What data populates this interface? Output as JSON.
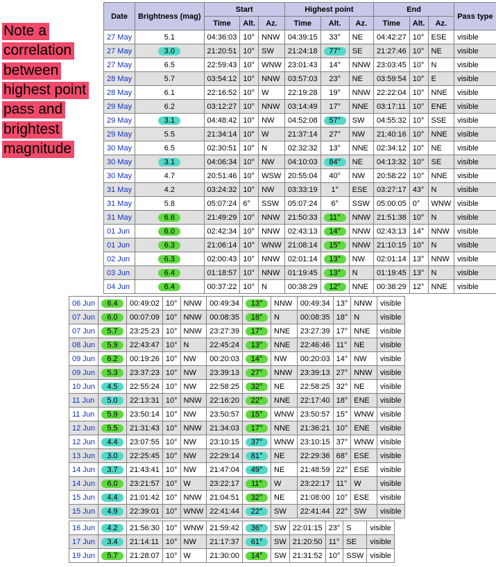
{
  "annotation_text": "Note a correlation between highest point pass and brightest magnitude",
  "headers": {
    "date": "Date",
    "brightness": "Brightness (mag)",
    "start": "Start",
    "highest": "Highest point",
    "end": "End",
    "time": "Time",
    "alt": "Alt.",
    "az": "Az.",
    "passtype": "Pass type"
  },
  "colors": {
    "annotation_bg": "#f04a6b",
    "header_bg": "#c8c8e8",
    "row_odd": "#ffffff",
    "row_even": "#e0e0e0",
    "link": "#1030c0",
    "pill_cyan": "#54d8c8",
    "pill_green": "#60d840"
  },
  "tables": [
    {
      "show_header": true,
      "rows": [
        {
          "date": "27 May",
          "mag": "5.1",
          "mag_pill": "",
          "s_t": "04:36:03",
          "s_alt": "10°",
          "s_az": "NNW",
          "h_t": "04:39:15",
          "h_alt": "33°",
          "h_alt_pill": "",
          "h_az": "NE",
          "e_t": "04:42:27",
          "e_alt": "10°",
          "e_az": "ESE",
          "pt": "visible"
        },
        {
          "date": "27 May",
          "mag": "3.0",
          "mag_pill": "cyan",
          "s_t": "21:20:51",
          "s_alt": "10°",
          "s_az": "SW",
          "h_t": "21:24:18",
          "h_alt": "77°",
          "h_alt_pill": "cyan",
          "h_az": "SE",
          "e_t": "21:27:46",
          "e_alt": "10°",
          "e_az": "NE",
          "pt": "visible"
        },
        {
          "date": "27 May",
          "mag": "6.5",
          "mag_pill": "",
          "s_t": "22:59:43",
          "s_alt": "10°",
          "s_az": "WNW",
          "h_t": "23:01:43",
          "h_alt": "14°",
          "h_alt_pill": "",
          "h_az": "NNW",
          "e_t": "23:03:45",
          "e_alt": "10°",
          "e_az": "N",
          "pt": "visible"
        },
        {
          "date": "28 May",
          "mag": "5.7",
          "mag_pill": "",
          "s_t": "03:54:12",
          "s_alt": "10°",
          "s_az": "NNW",
          "h_t": "03:57:03",
          "h_alt": "23°",
          "h_alt_pill": "",
          "h_az": "NE",
          "e_t": "03:59:54",
          "e_alt": "10°",
          "e_az": "E",
          "pt": "visible"
        },
        {
          "date": "28 May",
          "mag": "6.1",
          "mag_pill": "",
          "s_t": "22:16:52",
          "s_alt": "10°",
          "s_az": "W",
          "h_t": "22:19:28",
          "h_alt": "19°",
          "h_alt_pill": "",
          "h_az": "NNW",
          "e_t": "22:22:04",
          "e_alt": "10°",
          "e_az": "NNE",
          "pt": "visible"
        },
        {
          "date": "29 May",
          "mag": "6.2",
          "mag_pill": "",
          "s_t": "03:12:27",
          "s_alt": "10°",
          "s_az": "NNW",
          "h_t": "03:14:49",
          "h_alt": "17°",
          "h_alt_pill": "",
          "h_az": "NNE",
          "e_t": "03:17:11",
          "e_alt": "10°",
          "e_az": "ENE",
          "pt": "visible"
        },
        {
          "date": "29 May",
          "mag": "3.1",
          "mag_pill": "cyan",
          "s_t": "04:48:42",
          "s_alt": "10°",
          "s_az": "NW",
          "h_t": "04:52:08",
          "h_alt": "57°",
          "h_alt_pill": "cyan",
          "h_az": "SW",
          "e_t": "04:55:32",
          "e_alt": "10°",
          "e_az": "SSE",
          "pt": "visible"
        },
        {
          "date": "29 May",
          "mag": "5.5",
          "mag_pill": "",
          "s_t": "21:34:14",
          "s_alt": "10°",
          "s_az": "W",
          "h_t": "21:37:14",
          "h_alt": "27°",
          "h_alt_pill": "",
          "h_az": "NW",
          "e_t": "21:40:16",
          "e_alt": "10°",
          "e_az": "NNE",
          "pt": "visible"
        },
        {
          "date": "30 May",
          "mag": "6.5",
          "mag_pill": "",
          "s_t": "02:30:51",
          "s_alt": "10°",
          "s_az": "N",
          "h_t": "02:32:32",
          "h_alt": "13°",
          "h_alt_pill": "",
          "h_az": "NNE",
          "e_t": "02:34:12",
          "e_alt": "10°",
          "e_az": "NE",
          "pt": "visible"
        },
        {
          "date": "30 May",
          "mag": "3.1",
          "mag_pill": "cyan",
          "s_t": "04:06:34",
          "s_alt": "10°",
          "s_az": "NW",
          "h_t": "04:10:03",
          "h_alt": "84°",
          "h_alt_pill": "cyan",
          "h_az": "NE",
          "e_t": "04:13:32",
          "e_alt": "10°",
          "e_az": "SE",
          "pt": "visible"
        },
        {
          "date": "30 May",
          "mag": "4.7",
          "mag_pill": "",
          "s_t": "20:51:46",
          "s_alt": "10°",
          "s_az": "WSW",
          "h_t": "20:55:04",
          "h_alt": "40°",
          "h_alt_pill": "",
          "h_az": "NW",
          "e_t": "20:58:22",
          "e_alt": "10°",
          "e_az": "NNE",
          "pt": "visible"
        },
        {
          "date": "31 May",
          "mag": "4.2",
          "mag_pill": "",
          "s_t": "03:24:32",
          "s_alt": "10°",
          "s_az": "NW",
          "h_t": "03:33:19",
          "h_alt": "1°",
          "h_alt_pill": "",
          "h_az": "ESE",
          "e_t": "03:27:17",
          "e_alt": "43°",
          "e_az": "N",
          "pt": "visible"
        },
        {
          "date": "31 May",
          "mag": "5.8",
          "mag_pill": "",
          "s_t": "05:07:24",
          "s_alt": "6°",
          "s_az": "SSW",
          "h_t": "05:07:24",
          "h_alt": "6°",
          "h_alt_pill": "",
          "h_az": "SSW",
          "e_t": "05:00:05",
          "e_alt": "0°",
          "e_az": "WNW",
          "pt": "visible"
        },
        {
          "date": "31 May",
          "mag": "6.6",
          "mag_pill": "green",
          "s_t": "21:49:29",
          "s_alt": "10°",
          "s_az": "NNW",
          "h_t": "21:50:33",
          "h_alt": "11°",
          "h_alt_pill": "green",
          "h_az": "NNW",
          "e_t": "21:51:38",
          "e_alt": "10°",
          "e_az": "N",
          "pt": "visible"
        },
        {
          "date": "01 Jun",
          "mag": "6.0",
          "mag_pill": "green",
          "s_t": "02:42:34",
          "s_alt": "10°",
          "s_az": "NNW",
          "h_t": "02:43:13",
          "h_alt": "14°",
          "h_alt_pill": "green",
          "h_az": "NNW",
          "e_t": "02:43:13",
          "e_alt": "14°",
          "e_az": "NNW",
          "pt": "visible"
        },
        {
          "date": "01 Jun",
          "mag": "6.3",
          "mag_pill": "green",
          "s_t": "21:06:14",
          "s_alt": "10°",
          "s_az": "WNW",
          "h_t": "21:08:14",
          "h_alt": "15°",
          "h_alt_pill": "green",
          "h_az": "NNW",
          "e_t": "21:10:15",
          "e_alt": "10°",
          "e_az": "N",
          "pt": "visible"
        },
        {
          "date": "02 Jun",
          "mag": "6.3",
          "mag_pill": "green",
          "s_t": "02:00:43",
          "s_alt": "10°",
          "s_az": "NNW",
          "h_t": "02:01:14",
          "h_alt": "13°",
          "h_alt_pill": "green",
          "h_az": "NW",
          "e_t": "02:01:14",
          "e_alt": "13°",
          "e_az": "NNW",
          "pt": "visible"
        },
        {
          "date": "03 Jun",
          "mag": "6.4",
          "mag_pill": "green",
          "s_t": "01:18:57",
          "s_alt": "10°",
          "s_az": "NNW",
          "h_t": "01:19:45",
          "h_alt": "13°",
          "h_alt_pill": "green",
          "h_az": "N",
          "e_t": "01:19:45",
          "e_alt": "13°",
          "e_az": "N",
          "pt": "visible"
        },
        {
          "date": "04 Jun",
          "mag": "6.4",
          "mag_pill": "green",
          "s_t": "00:37:22",
          "s_alt": "10°",
          "s_az": "N",
          "h_t": "00:38:29",
          "h_alt": "12°",
          "h_alt_pill": "green",
          "h_az": "NNE",
          "e_t": "00:38:29",
          "e_alt": "12°",
          "e_az": "NNE",
          "pt": "visible"
        }
      ]
    },
    {
      "show_header": false,
      "rows": [
        {
          "date": "06 Jun",
          "mag": "6.4",
          "mag_pill": "green",
          "s_t": "00:49:02",
          "s_alt": "10°",
          "s_az": "NNW",
          "h_t": "00:49:34",
          "h_alt": "13°",
          "h_alt_pill": "green",
          "h_az": "NNW",
          "e_t": "00:49:34",
          "e_alt": "13°",
          "e_az": "NNW",
          "pt": "visible"
        },
        {
          "date": "07 Jun",
          "mag": "6.0",
          "mag_pill": "green",
          "s_t": "00:07:09",
          "s_alt": "10°",
          "s_az": "NNW",
          "h_t": "00:08:35",
          "h_alt": "18°",
          "h_alt_pill": "green",
          "h_az": "N",
          "e_t": "00:08:35",
          "e_alt": "18°",
          "e_az": "N",
          "pt": "visible"
        },
        {
          "date": "07 Jun",
          "mag": "5.7",
          "mag_pill": "green",
          "s_t": "23:25:23",
          "s_alt": "10°",
          "s_az": "NNW",
          "h_t": "23:27:39",
          "h_alt": "17°",
          "h_alt_pill": "green",
          "h_az": "NNE",
          "e_t": "23:27:39",
          "e_alt": "17°",
          "e_az": "NNE",
          "pt": "visible"
        },
        {
          "date": "08 Jun",
          "mag": "5.9",
          "mag_pill": "green",
          "s_t": "22:43:47",
          "s_alt": "10°",
          "s_az": "N",
          "h_t": "22:45:24",
          "h_alt": "13°",
          "h_alt_pill": "green",
          "h_az": "NNE",
          "e_t": "22:46:46",
          "e_alt": "11°",
          "e_az": "NE",
          "pt": "visible"
        },
        {
          "date": "09 Jun",
          "mag": "6.2",
          "mag_pill": "green",
          "s_t": "00:19:26",
          "s_alt": "10°",
          "s_az": "NW",
          "h_t": "00:20:03",
          "h_alt": "14°",
          "h_alt_pill": "green",
          "h_az": "NW",
          "e_t": "00:20:03",
          "e_alt": "14°",
          "e_az": "NW",
          "pt": "visible"
        },
        {
          "date": "09 Jun",
          "mag": "5.3",
          "mag_pill": "green",
          "s_t": "23:37:23",
          "s_alt": "10°",
          "s_az": "NW",
          "h_t": "23:39:13",
          "h_alt": "27°",
          "h_alt_pill": "green",
          "h_az": "NNW",
          "e_t": "23:39:13",
          "e_alt": "27°",
          "e_az": "NNW",
          "pt": "visible"
        },
        {
          "date": "10 Jun",
          "mag": "4.5",
          "mag_pill": "cyan",
          "s_t": "22:55:24",
          "s_alt": "10°",
          "s_az": "NW",
          "h_t": "22:58:25",
          "h_alt": "32°",
          "h_alt_pill": "green",
          "h_az": "NE",
          "e_t": "22:58:25",
          "e_alt": "32°",
          "e_az": "NE",
          "pt": "visible"
        },
        {
          "date": "11 Jun",
          "mag": "5.0",
          "mag_pill": "cyan",
          "s_t": "22:13:31",
          "s_alt": "10°",
          "s_az": "NNW",
          "h_t": "22:16:20",
          "h_alt": "22°",
          "h_alt_pill": "green",
          "h_az": "NNE",
          "e_t": "22:17:40",
          "e_alt": "18°",
          "e_az": "ENE",
          "pt": "visible"
        },
        {
          "date": "11 Jun",
          "mag": "5.9",
          "mag_pill": "green",
          "s_t": "23:50:14",
          "s_alt": "10°",
          "s_az": "NW",
          "h_t": "23:50:57",
          "h_alt": "15°",
          "h_alt_pill": "green",
          "h_az": "WNW",
          "e_t": "23:50:57",
          "e_alt": "15°",
          "e_az": "WNW",
          "pt": "visible"
        },
        {
          "date": "12 Jun",
          "mag": "5.5",
          "mag_pill": "green",
          "s_t": "21:31:43",
          "s_alt": "10°",
          "s_az": "NNW",
          "h_t": "21:34:03",
          "h_alt": "17°",
          "h_alt_pill": "green",
          "h_az": "NNE",
          "e_t": "21:36:21",
          "e_alt": "10°",
          "e_az": "ENE",
          "pt": "visible"
        },
        {
          "date": "12 Jun",
          "mag": "4.4",
          "mag_pill": "cyan",
          "s_t": "23:07:55",
          "s_alt": "10°",
          "s_az": "NW",
          "h_t": "23:10:15",
          "h_alt": "37°",
          "h_alt_pill": "cyan",
          "h_az": "WNW",
          "e_t": "23:10:15",
          "e_alt": "37°",
          "e_az": "WNW",
          "pt": "visible"
        },
        {
          "date": "13 Jun",
          "mag": "3.0",
          "mag_pill": "cyan",
          "s_t": "22:25:45",
          "s_alt": "10°",
          "s_az": "NW",
          "h_t": "22:29:14",
          "h_alt": "81°",
          "h_alt_pill": "cyan",
          "h_az": "NE",
          "e_t": "22:29:36",
          "e_alt": "68°",
          "e_az": "ESE",
          "pt": "visible"
        },
        {
          "date": "14 Jun",
          "mag": "3.7",
          "mag_pill": "cyan",
          "s_t": "21:43:41",
          "s_alt": "10°",
          "s_az": "NW",
          "h_t": "21:47:04",
          "h_alt": "49°",
          "h_alt_pill": "cyan",
          "h_az": "NE",
          "e_t": "21:48:59",
          "e_alt": "22°",
          "e_az": "ESE",
          "pt": "visible"
        },
        {
          "date": "14 Jun",
          "mag": "6.0",
          "mag_pill": "green",
          "s_t": "23:21:57",
          "s_alt": "10°",
          "s_az": "W",
          "h_t": "23:22:17",
          "h_alt": "11°",
          "h_alt_pill": "green",
          "h_az": "W",
          "e_t": "23:22:17",
          "e_alt": "11°",
          "e_az": "W",
          "pt": "visible"
        },
        {
          "date": "15 Jun",
          "mag": "4.4",
          "mag_pill": "cyan",
          "s_t": "21:01:42",
          "s_alt": "10°",
          "s_az": "NNW",
          "h_t": "21:04:51",
          "h_alt": "32°",
          "h_alt_pill": "green",
          "h_az": "NE",
          "e_t": "21:08:00",
          "e_alt": "10°",
          "e_az": "ESE",
          "pt": "visible"
        },
        {
          "date": "15 Jun",
          "mag": "4.9",
          "mag_pill": "cyan",
          "s_t": "22:39:01",
          "s_alt": "10°",
          "s_az": "WNW",
          "h_t": "22:41:44",
          "h_alt": "22°",
          "h_alt_pill": "cyan",
          "h_az": "SW",
          "e_t": "22:41:44",
          "e_alt": "22°",
          "e_az": "SW",
          "pt": "visible"
        }
      ]
    },
    {
      "show_header": false,
      "rows": [
        {
          "date": "16 Jun",
          "mag": "4.2",
          "mag_pill": "cyan",
          "s_t": "21:56:30",
          "s_alt": "10°",
          "s_az": "WNW",
          "h_t": "21:59:42",
          "h_alt": "36°",
          "h_alt_pill": "cyan",
          "h_az": "SW",
          "e_t": "22:01:15",
          "e_alt": "23°",
          "e_az": "S",
          "pt": "visible"
        },
        {
          "date": "17 Jun",
          "mag": "3.4",
          "mag_pill": "cyan",
          "s_t": "21:14:11",
          "s_alt": "10°",
          "s_az": "NW",
          "h_t": "21:17:37",
          "h_alt": "61°",
          "h_alt_pill": "cyan",
          "h_az": "SW",
          "e_t": "21:20:50",
          "e_alt": "11°",
          "e_az": "SE",
          "pt": "visible"
        },
        {
          "date": "19 Jun",
          "mag": "5.7",
          "mag_pill": "green",
          "s_t": "21:28:07",
          "s_alt": "10°",
          "s_az": "W",
          "h_t": "21:30:00",
          "h_alt": "14°",
          "h_alt_pill": "green",
          "h_az": "SW",
          "e_t": "21:31:52",
          "e_alt": "10°",
          "e_az": "SSW",
          "pt": "visible"
        }
      ]
    }
  ]
}
